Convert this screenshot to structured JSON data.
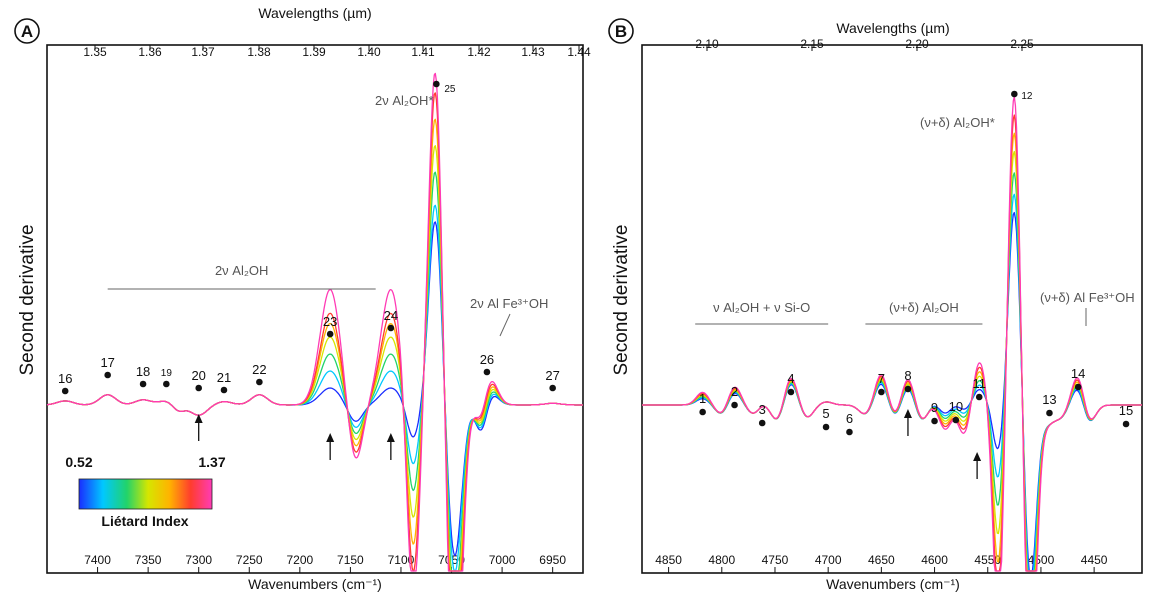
{
  "chart_data": [
    {
      "panel": "A",
      "type": "line",
      "top_axis": {
        "title": "Wavelengths (µm)",
        "ticks": [
          1.35,
          1.36,
          1.37,
          1.38,
          1.39,
          1.4,
          1.41,
          1.42,
          1.43,
          1.44
        ]
      },
      "bottom_axis": {
        "title": "Wavenumbers (cm⁻¹)",
        "ticks": [
          7400,
          7350,
          7300,
          7250,
          7200,
          7150,
          7100,
          7050,
          7000,
          6950
        ],
        "xlim": [
          7450,
          6920
        ]
      },
      "ylabel": "Second derivative",
      "colorbar": {
        "min_label": "0.52",
        "max_label": "1.37",
        "title": "Liétard Index",
        "colors": [
          "#1a2dff",
          "#00c8ff",
          "#22d36a",
          "#d6e600",
          "#ffb300",
          "#ff3d2e",
          "#ff3bb5"
        ]
      },
      "band_labels": [
        {
          "text": "2ν Al₂OH",
          "x_from": 7390,
          "x_to": 7125
        },
        {
          "text": "2ν Al₂OH*",
          "x": 7075
        },
        {
          "text": "2ν Al Fe³⁺OH",
          "x": 7005
        }
      ],
      "peaks": [
        {
          "label": "16",
          "x": 7432
        },
        {
          "label": "17",
          "x": 7390
        },
        {
          "label": "18",
          "x": 7355
        },
        {
          "label": "19",
          "x": 7332
        },
        {
          "label": "20",
          "x": 7300
        },
        {
          "label": "21",
          "x": 7275
        },
        {
          "label": "22",
          "x": 7240
        },
        {
          "label": "23",
          "x": 7170
        },
        {
          "label": "24",
          "x": 7110
        },
        {
          "label": "25",
          "x": 7065
        },
        {
          "label": "26",
          "x": 7015
        },
        {
          "label": "27",
          "x": 6950
        }
      ],
      "arrows": [
        7300,
        7170,
        7110
      ],
      "series": [
        {
          "color": "#1a2dff",
          "values": {
            "centre_peak": 0.55,
            "peak_23": 0.05,
            "peak_24": 0.05,
            "trough": -0.45
          }
        },
        {
          "color": "#00c8ff",
          "values": {
            "centre_peak": 0.6,
            "peak_23": 0.1,
            "peak_24": 0.1,
            "trough": -0.5
          }
        },
        {
          "color": "#22d36a",
          "values": {
            "centre_peak": 0.7,
            "peak_23": 0.15,
            "peak_24": 0.15,
            "trough": -0.6
          }
        },
        {
          "color": "#d6e600",
          "values": {
            "centre_peak": 0.78,
            "peak_23": 0.2,
            "peak_24": 0.2,
            "trough": -0.68
          }
        },
        {
          "color": "#ffb300",
          "values": {
            "centre_peak": 0.86,
            "peak_23": 0.24,
            "peak_24": 0.24,
            "trough": -0.76
          }
        },
        {
          "color": "#ff3d2e",
          "values": {
            "centre_peak": 0.94,
            "peak_23": 0.27,
            "peak_24": 0.27,
            "trough": -0.85
          }
        },
        {
          "color": "#ff3bb5",
          "values": {
            "centre_peak": 1.0,
            "peak_23": 0.34,
            "peak_24": 0.34,
            "trough": -0.95
          }
        }
      ]
    },
    {
      "panel": "B",
      "type": "line",
      "top_axis": {
        "title": "Wavelengths (µm)",
        "ticks": [
          2.1,
          2.15,
          2.2,
          2.25
        ]
      },
      "bottom_axis": {
        "title": "Wavenumbers (cm⁻¹)",
        "ticks": [
          4850,
          4800,
          4750,
          4700,
          4650,
          4600,
          4550,
          4500,
          4450
        ],
        "xlim": [
          4875,
          4405
        ]
      },
      "ylabel": "Second derivative",
      "band_labels": [
        {
          "text": "ν Al₂OH + ν Si-O",
          "x_from": 4825,
          "x_to": 4700
        },
        {
          "text": "(ν+δ) Al₂OH",
          "x_from": 4665,
          "x_to": 4555
        },
        {
          "text": "(ν+δ) Al₂OH*",
          "x": 4545
        },
        {
          "text": "(ν+δ) Al Fe³⁺OH",
          "x": 4460
        }
      ],
      "peaks": [
        {
          "label": "1",
          "x": 4818
        },
        {
          "label": "2",
          "x": 4788
        },
        {
          "label": "3",
          "x": 4762
        },
        {
          "label": "4",
          "x": 4735
        },
        {
          "label": "5",
          "x": 4702
        },
        {
          "label": "6",
          "x": 4680
        },
        {
          "label": "7",
          "x": 4650
        },
        {
          "label": "8",
          "x": 4625
        },
        {
          "label": "9",
          "x": 4600
        },
        {
          "label": "10",
          "x": 4580
        },
        {
          "label": "11",
          "x": 4558
        },
        {
          "label": "12",
          "x": 4525
        },
        {
          "label": "13",
          "x": 4492
        },
        {
          "label": "14",
          "x": 4465
        },
        {
          "label": "15",
          "x": 4420
        }
      ],
      "arrows": [
        4625,
        4560
      ],
      "series": [
        {
          "color": "#1a2dff",
          "values": {
            "centre_peak": 0.62,
            "trough": -0.55
          }
        },
        {
          "color": "#00c8ff",
          "values": {
            "centre_peak": 0.68,
            "trough": -0.6
          }
        },
        {
          "color": "#22d36a",
          "values": {
            "centre_peak": 0.75,
            "trough": -0.68
          }
        },
        {
          "color": "#d6e600",
          "values": {
            "centre_peak": 0.82,
            "trough": -0.74
          }
        },
        {
          "color": "#ffb300",
          "values": {
            "centre_peak": 0.88,
            "trough": -0.8
          }
        },
        {
          "color": "#ff3d2e",
          "values": {
            "centre_peak": 0.94,
            "trough": -0.88
          }
        },
        {
          "color": "#ff3bb5",
          "values": {
            "centre_peak": 1.0,
            "trough": -0.95
          }
        }
      ]
    }
  ]
}
